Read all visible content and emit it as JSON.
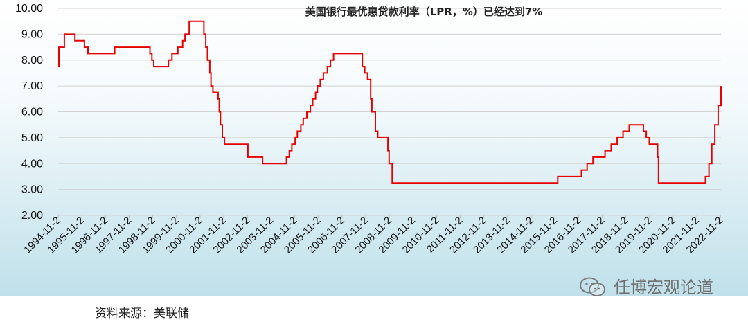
{
  "chart_data": {
    "type": "line",
    "title": "美国银行最优惠贷款利率（LPR，%）已经达到7%",
    "xlabel": "",
    "ylabel": "",
    "ylim": [
      2,
      10
    ],
    "yticks": [
      "2.00",
      "3.00",
      "4.00",
      "5.00",
      "6.00",
      "7.00",
      "8.00",
      "9.00",
      "10.00"
    ],
    "xticks": [
      "1994-11-2",
      "1995-11-2",
      "1996-11-2",
      "1997-11-2",
      "1998-11-2",
      "1999-11-2",
      "2000-11-2",
      "2001-11-2",
      "2002-11-2",
      "2003-11-2",
      "2004-11-2",
      "2005-11-2",
      "2006-11-2",
      "2007-11-2",
      "2008-11-2",
      "2009-11-2",
      "2010-11-2",
      "2011-11-2",
      "2012-11-2",
      "2013-11-2",
      "2014-11-2",
      "2015-11-2",
      "2016-11-2",
      "2017-11-2",
      "2018-11-2",
      "2019-11-2",
      "2020-11-2",
      "2021-11-2",
      "2022-11-2"
    ],
    "grid": true,
    "line_color": "#e60000",
    "series": [
      {
        "points": [
          [
            1994.84,
            7.75
          ],
          [
            1994.87,
            8.5
          ],
          [
            1995.1,
            9.0
          ],
          [
            1995.55,
            8.75
          ],
          [
            1995.95,
            8.5
          ],
          [
            1996.1,
            8.25
          ],
          [
            1997.23,
            8.5
          ],
          [
            1998.72,
            8.25
          ],
          [
            1998.8,
            8.0
          ],
          [
            1998.88,
            7.75
          ],
          [
            1999.5,
            8.0
          ],
          [
            1999.65,
            8.25
          ],
          [
            1999.9,
            8.5
          ],
          [
            2000.1,
            8.75
          ],
          [
            2000.2,
            9.0
          ],
          [
            2000.38,
            9.5
          ],
          [
            2001.0,
            9.0
          ],
          [
            2001.08,
            8.5
          ],
          [
            2001.15,
            8.0
          ],
          [
            2001.25,
            7.5
          ],
          [
            2001.3,
            7.0
          ],
          [
            2001.38,
            6.75
          ],
          [
            2001.6,
            6.5
          ],
          [
            2001.65,
            6.0
          ],
          [
            2001.7,
            5.5
          ],
          [
            2001.78,
            5.0
          ],
          [
            2001.87,
            4.75
          ],
          [
            2002.86,
            4.25
          ],
          [
            2003.48,
            4.0
          ],
          [
            2004.49,
            4.25
          ],
          [
            2004.61,
            4.5
          ],
          [
            2004.72,
            4.75
          ],
          [
            2004.86,
            5.0
          ],
          [
            2004.95,
            5.25
          ],
          [
            2005.1,
            5.5
          ],
          [
            2005.2,
            5.75
          ],
          [
            2005.35,
            6.0
          ],
          [
            2005.5,
            6.25
          ],
          [
            2005.6,
            6.5
          ],
          [
            2005.72,
            6.75
          ],
          [
            2005.8,
            7.0
          ],
          [
            2005.92,
            7.25
          ],
          [
            2006.05,
            7.5
          ],
          [
            2006.22,
            7.75
          ],
          [
            2006.35,
            8.0
          ],
          [
            2006.48,
            8.25
          ],
          [
            2007.7,
            7.75
          ],
          [
            2007.8,
            7.5
          ],
          [
            2007.92,
            7.25
          ],
          [
            2008.05,
            6.5
          ],
          [
            2008.1,
            6.0
          ],
          [
            2008.25,
            5.25
          ],
          [
            2008.35,
            5.0
          ],
          [
            2008.78,
            4.5
          ],
          [
            2008.83,
            4.0
          ],
          [
            2008.96,
            3.25
          ],
          [
            2015.96,
            3.5
          ],
          [
            2016.96,
            3.75
          ],
          [
            2017.2,
            4.0
          ],
          [
            2017.45,
            4.25
          ],
          [
            2017.96,
            4.5
          ],
          [
            2018.22,
            4.75
          ],
          [
            2018.47,
            5.0
          ],
          [
            2018.72,
            5.25
          ],
          [
            2018.98,
            5.5
          ],
          [
            2019.58,
            5.25
          ],
          [
            2019.7,
            5.0
          ],
          [
            2019.83,
            4.75
          ],
          [
            2020.18,
            4.25
          ],
          [
            2020.22,
            3.25
          ],
          [
            2022.2,
            3.5
          ],
          [
            2022.35,
            4.0
          ],
          [
            2022.47,
            4.75
          ],
          [
            2022.6,
            5.5
          ],
          [
            2022.74,
            6.25
          ],
          [
            2022.86,
            7.0
          ]
        ]
      }
    ]
  },
  "watermark": {
    "icon": "wechat-icon",
    "text": "任博宏观论道"
  },
  "source_note": "资料来源：美联储"
}
